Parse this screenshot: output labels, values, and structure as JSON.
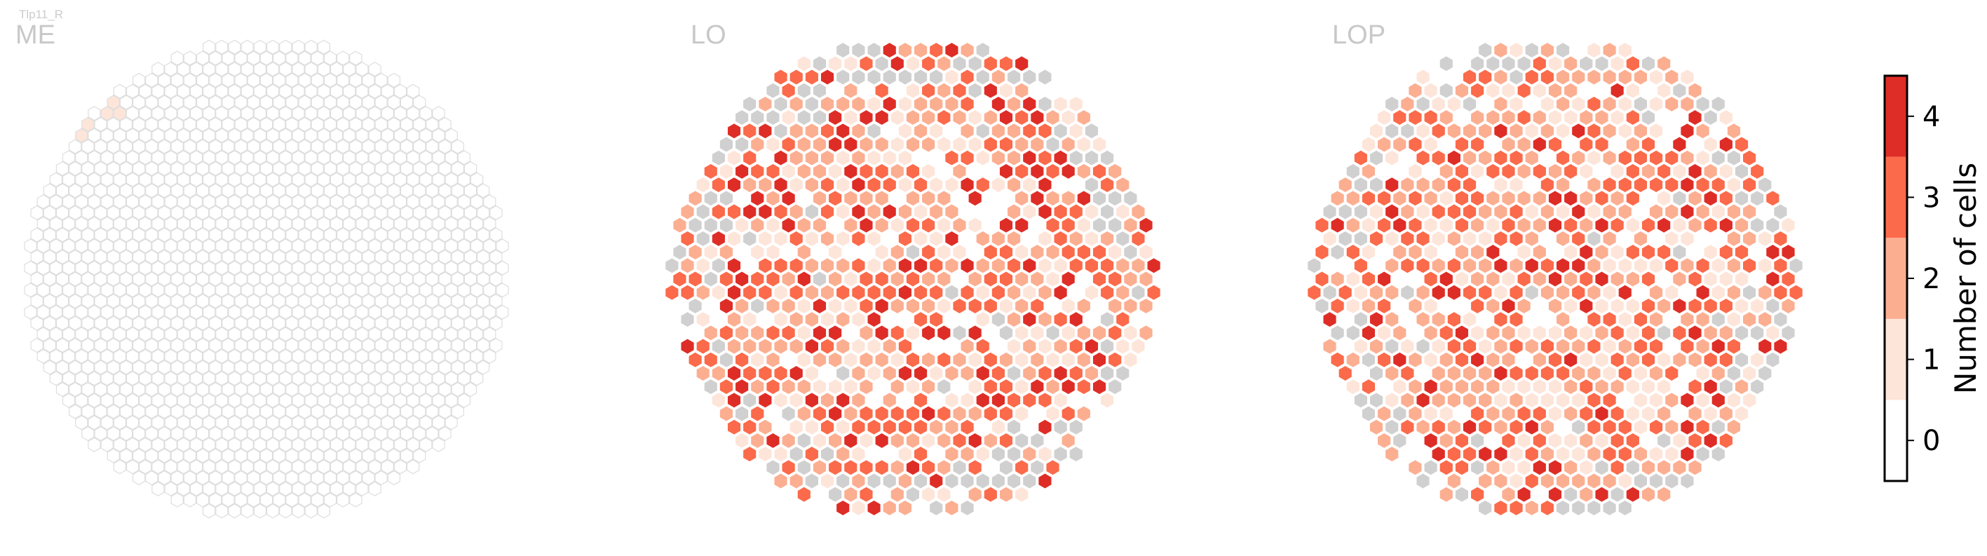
{
  "figure": {
    "cell_type_label": "Tlp11_R"
  },
  "chart_data": {
    "type": "heatmap",
    "grid": "hexagonal",
    "legend": "right",
    "panels": [
      {
        "title": "ME",
        "empty_color": "#ffffff",
        "missing_color": "#ffffff",
        "edge_color": "#dedede",
        "nonzero_cells": [
          {
            "row": -16,
            "col": -12,
            "value": 1
          },
          {
            "row": -15,
            "col": -12,
            "value": 1
          },
          {
            "row": -15,
            "col": -13,
            "value": 1
          },
          {
            "row": -14,
            "col": -14,
            "value": 1
          },
          {
            "row": -13,
            "col": -15,
            "value": 1
          },
          {
            "row": -12,
            "col": -16,
            "value": 1
          },
          {
            "row": -12,
            "col": -17,
            "value": 1
          },
          {
            "row": -11,
            "col": -17,
            "value": 1
          }
        ]
      },
      {
        "title": "LO",
        "empty_color": "#ffffff",
        "missing_color": "#d0d0d0",
        "edge_color": "#ffffff"
      },
      {
        "title": "LOP",
        "empty_color": "#ffffff",
        "missing_color": "#d0d0d0",
        "edge_color": "#ffffff"
      }
    ],
    "colorbar": {
      "title": "Number of cells",
      "ticks": [
        0,
        1,
        2,
        3,
        4
      ],
      "range": [
        -0.5,
        4.5
      ],
      "colors": [
        "#ffffff",
        "#fee5d9",
        "#fcae91",
        "#fb6a4a",
        "#de2d26"
      ]
    }
  }
}
